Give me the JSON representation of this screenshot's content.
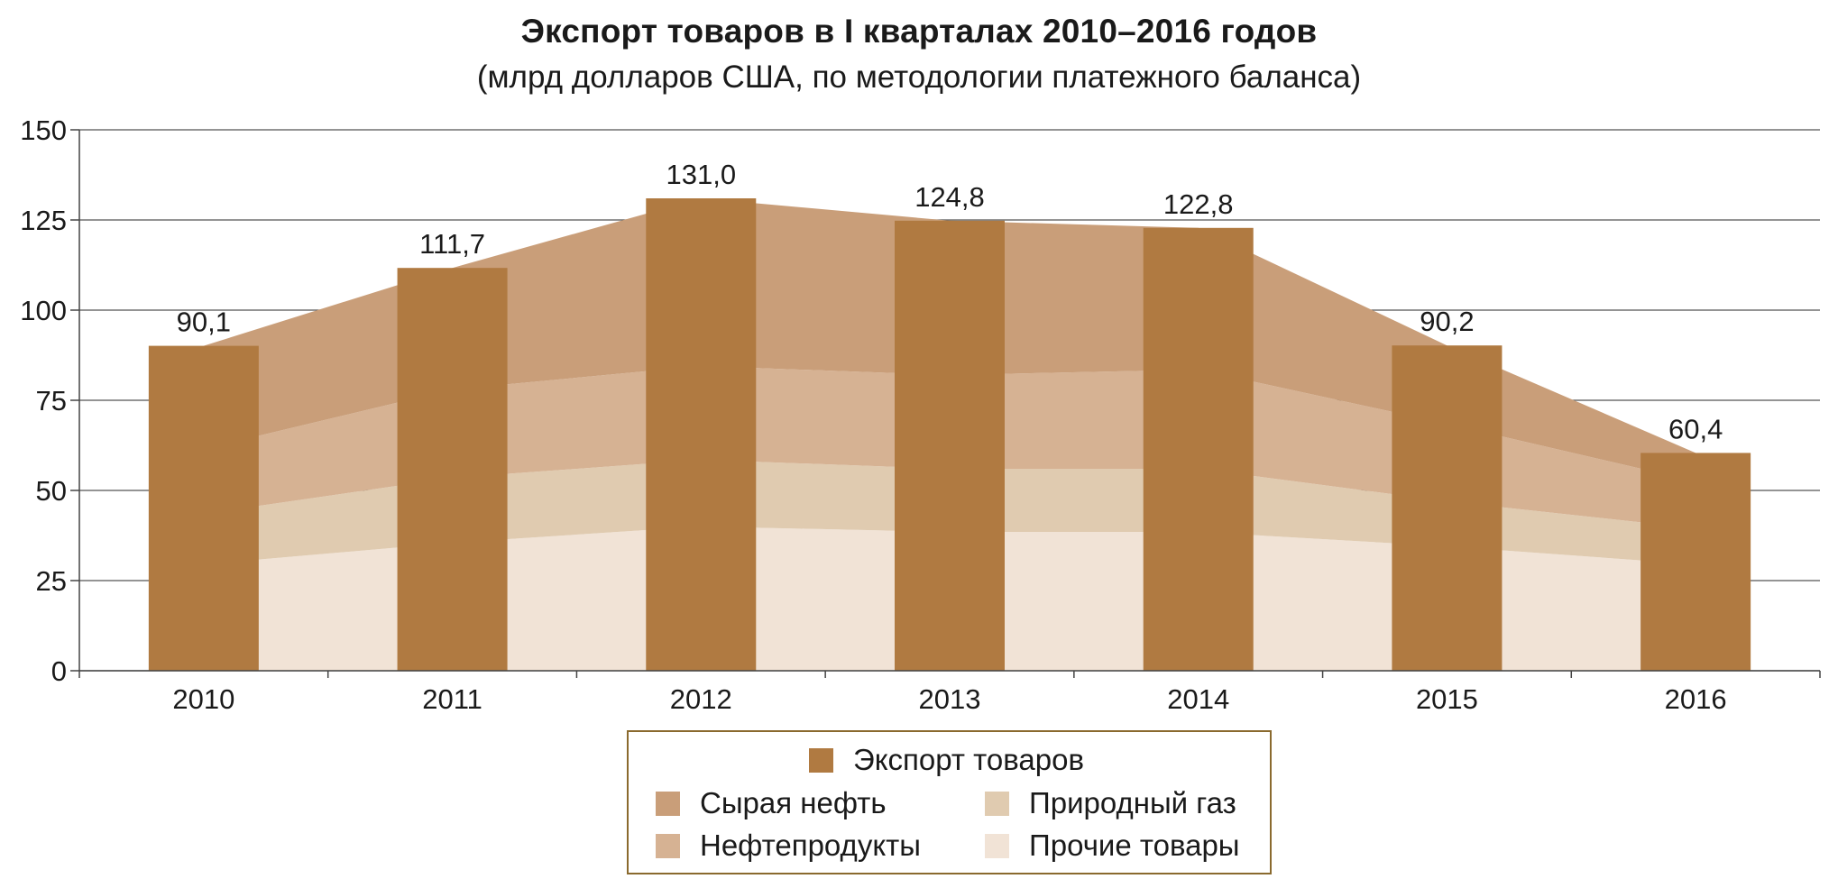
{
  "chart_data": {
    "type": "bar",
    "title": "Экспорт товаров в I кварталах 2010–2016 годов",
    "subtitle": "(млрд долларов США, по методологии платежного баланса)",
    "categories": [
      "2010",
      "2011",
      "2012",
      "2013",
      "2014",
      "2015",
      "2016"
    ],
    "ylim": [
      0,
      150
    ],
    "yticks": [
      "0",
      "25",
      "50",
      "75",
      "100",
      "125",
      "150"
    ],
    "grid": true,
    "legend_position": "bottom",
    "bar_series": {
      "name": "Экспорт товаров",
      "values": [
        90.1,
        111.7,
        131.0,
        124.8,
        122.8,
        90.2,
        60.4
      ],
      "labels": [
        "90,1",
        "111,7",
        "131,0",
        "124,8",
        "122,8",
        "90,2",
        "60,4"
      ],
      "color": "#b07a41"
    },
    "stacked_area_series": [
      {
        "name": "Прочие товары",
        "values": [
          29.5,
          35.5,
          40.0,
          38.5,
          38.5,
          34.5,
          29.5
        ],
        "color": "#f1e3d6"
      },
      {
        "name": "Природный газ",
        "values": [
          14.0,
          18.0,
          18.5,
          17.5,
          17.5,
          12.5,
          10.0
        ],
        "color": "#e0cbb0"
      },
      {
        "name": "Нефтепродукты",
        "values": [
          18.0,
          24.5,
          26.0,
          26.0,
          27.5,
          21.5,
          13.0
        ],
        "color": "#d6b293"
      },
      {
        "name": "Сырая нефть",
        "values": [
          28.6,
          33.7,
          46.5,
          42.8,
          39.3,
          21.7,
          7.9
        ],
        "color": "#c99e79"
      }
    ]
  },
  "legend": {
    "bar_label": "Экспорт товаров",
    "items": [
      {
        "label": "Сырая нефть",
        "color": "#c99e79"
      },
      {
        "label": "Природный газ",
        "color": "#e0cbb0"
      },
      {
        "label": "Нефтепродукты",
        "color": "#d6b293"
      },
      {
        "label": "Прочие товары",
        "color": "#f1e3d6"
      }
    ]
  }
}
